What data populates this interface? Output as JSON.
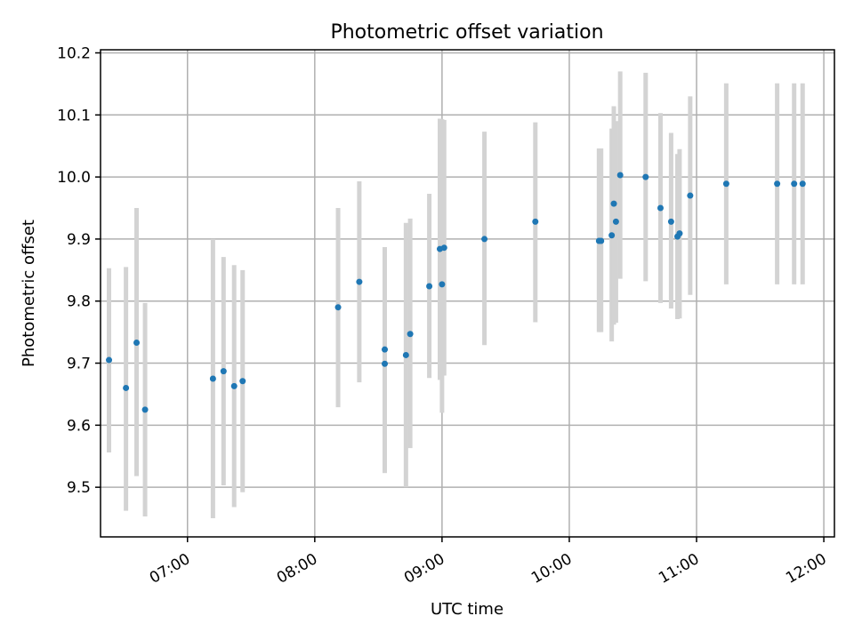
{
  "chart_data": {
    "type": "scatter",
    "title": "Photometric offset variation",
    "xlabel": "UTC time",
    "ylabel": "Photometric offset",
    "xlim": [
      "06:19",
      "12:05"
    ],
    "ylim": [
      9.42,
      10.205
    ],
    "x_ticks": [
      "07:00",
      "08:00",
      "09:00",
      "10:00",
      "11:00",
      "12:00"
    ],
    "y_ticks": [
      9.5,
      9.6,
      9.7,
      9.8,
      9.9,
      10.0,
      10.1,
      10.2
    ],
    "y_tick_labels": [
      "9.5",
      "9.6",
      "9.7",
      "9.8",
      "9.9",
      "10.0",
      "10.1",
      "10.2"
    ],
    "grid": true,
    "marker_color": "#1f77b4",
    "errorbar_color": "#d3d3d3",
    "points": [
      {
        "x": "06:23",
        "y": 9.705,
        "low": 9.556,
        "high": 9.853
      },
      {
        "x": "06:31",
        "y": 9.66,
        "low": 9.462,
        "high": 9.855
      },
      {
        "x": "06:36",
        "y": 9.733,
        "low": 9.518,
        "high": 9.95
      },
      {
        "x": "06:40",
        "y": 9.625,
        "low": 9.453,
        "high": 9.797
      },
      {
        "x": "07:12",
        "y": 9.675,
        "low": 9.45,
        "high": 9.9
      },
      {
        "x": "07:17",
        "y": 9.687,
        "low": 9.503,
        "high": 9.871
      },
      {
        "x": "07:22",
        "y": 9.663,
        "low": 9.468,
        "high": 9.858
      },
      {
        "x": "07:26",
        "y": 9.671,
        "low": 9.492,
        "high": 9.85
      },
      {
        "x": "08:11",
        "y": 9.79,
        "low": 9.629,
        "high": 9.95
      },
      {
        "x": "08:21",
        "y": 9.831,
        "low": 9.669,
        "high": 9.993
      },
      {
        "x": "08:33",
        "y": 9.722,
        "low": 9.523,
        "high": 9.887
      },
      {
        "x": "08:33",
        "y": 9.699,
        "low": 9.523,
        "high": 9.875
      },
      {
        "x": "08:43",
        "y": 9.713,
        "low": 9.5,
        "high": 9.926
      },
      {
        "x": "08:45",
        "y": 9.747,
        "low": 9.563,
        "high": 9.933
      },
      {
        "x": "08:54",
        "y": 9.824,
        "low": 9.676,
        "high": 9.973
      },
      {
        "x": "08:59",
        "y": 9.884,
        "low": 9.673,
        "high": 10.094
      },
      {
        "x": "09:00",
        "y": 9.827,
        "low": 9.62,
        "high": 10.093
      },
      {
        "x": "09:01",
        "y": 9.886,
        "low": 9.68,
        "high": 10.092
      },
      {
        "x": "09:20",
        "y": 9.9,
        "low": 9.729,
        "high": 10.073
      },
      {
        "x": "09:44",
        "y": 9.928,
        "low": 9.766,
        "high": 10.088
      },
      {
        "x": "10:14",
        "y": 9.897,
        "low": 9.75,
        "high": 10.046
      },
      {
        "x": "10:15",
        "y": 9.897,
        "low": 9.75,
        "high": 10.046
      },
      {
        "x": "10:20",
        "y": 9.906,
        "low": 9.735,
        "high": 10.078
      },
      {
        "x": "10:21",
        "y": 9.957,
        "low": 9.762,
        "high": 10.114
      },
      {
        "x": "10:22",
        "y": 9.928,
        "low": 9.765,
        "high": 10.09
      },
      {
        "x": "10:24",
        "y": 10.003,
        "low": 9.836,
        "high": 10.17
      },
      {
        "x": "10:36",
        "y": 10.0,
        "low": 9.832,
        "high": 10.168
      },
      {
        "x": "10:43",
        "y": 9.95,
        "low": 9.797,
        "high": 10.103
      },
      {
        "x": "10:48",
        "y": 9.928,
        "low": 9.788,
        "high": 10.071
      },
      {
        "x": "10:51",
        "y": 9.904,
        "low": 9.771,
        "high": 10.037
      },
      {
        "x": "10:52",
        "y": 9.909,
        "low": 9.772,
        "high": 10.045
      },
      {
        "x": "10:57",
        "y": 9.97,
        "low": 9.81,
        "high": 10.13
      },
      {
        "x": "11:14",
        "y": 9.989,
        "low": 9.827,
        "high": 10.151
      },
      {
        "x": "11:38",
        "y": 9.989,
        "low": 9.827,
        "high": 10.151
      },
      {
        "x": "11:46",
        "y": 9.989,
        "low": 9.827,
        "high": 10.151
      },
      {
        "x": "11:50",
        "y": 9.989,
        "low": 9.827,
        "high": 10.151
      }
    ]
  }
}
